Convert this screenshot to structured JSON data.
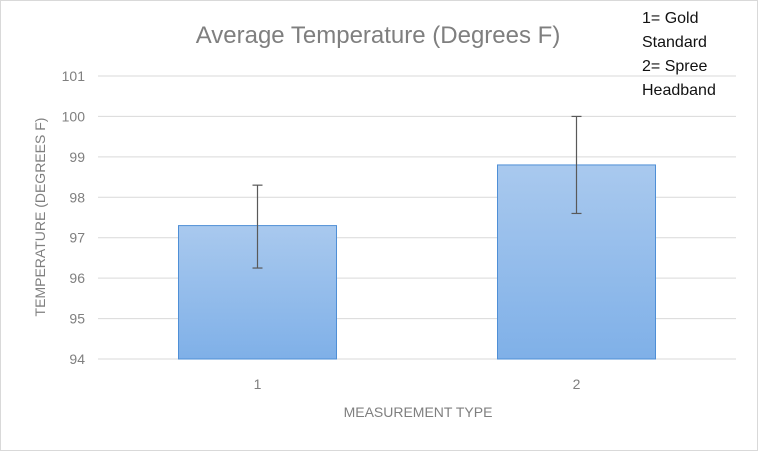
{
  "chart_data": {
    "type": "bar",
    "title": "Average Temperature (Degrees F)",
    "xlabel": "MEASUREMENT TYPE",
    "ylabel": "TEMPERATURE (DEGREES F)",
    "categories": [
      "1",
      "2"
    ],
    "values": [
      97.3,
      98.8
    ],
    "error_bars": [
      {
        "lower": 96.25,
        "upper": 98.3
      },
      {
        "lower": 97.6,
        "upper": 100.0
      }
    ],
    "ylim": [
      94,
      101
    ],
    "yticks": [
      "94",
      "95",
      "96",
      "97",
      "98",
      "99",
      "100",
      "101"
    ],
    "grid": true,
    "legend": "none",
    "colors": {
      "bar_top": "#a9c9ee",
      "bar_bottom": "#7fb0e8",
      "bar_outline": "#4f8fd6",
      "grid": "#d9d9d9",
      "text": "#7f7f7f",
      "error_bar": "#595959"
    }
  },
  "note": {
    "lines": [
      "1= Gold",
      "Standard",
      "2= Spree",
      "Headband"
    ]
  }
}
